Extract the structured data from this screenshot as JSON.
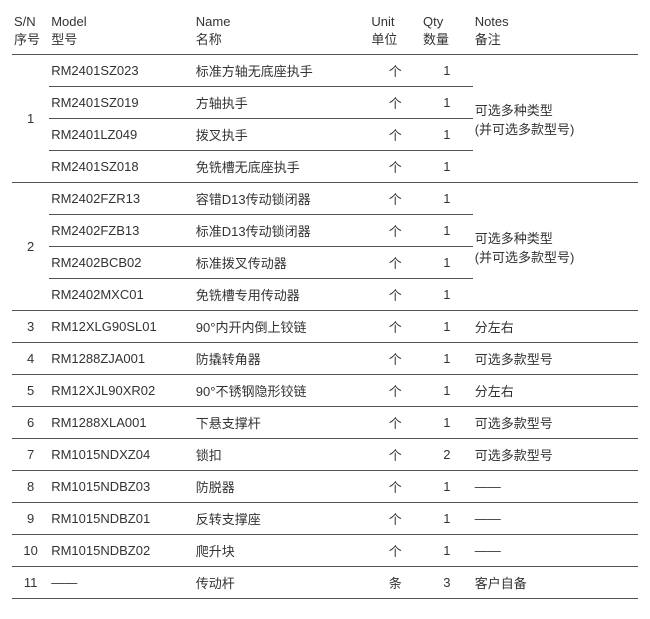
{
  "columns": [
    {
      "en": "S/N",
      "zh": "序号"
    },
    {
      "en": "Model",
      "zh": "型号"
    },
    {
      "en": "Name",
      "zh": "名称"
    },
    {
      "en": "Unit",
      "zh": "单位"
    },
    {
      "en": "Qty",
      "zh": "数量"
    },
    {
      "en": "Notes",
      "zh": "备注"
    }
  ],
  "groups": [
    {
      "sn": "1",
      "notes": [
        "可选多种类型",
        "(并可选多款型号)"
      ],
      "rows": [
        {
          "model": "RM2401SZ023",
          "name": "标准方轴无底座执手",
          "unit": "个",
          "qty": "1"
        },
        {
          "model": "RM2401SZ019",
          "name": "方轴执手",
          "unit": "个",
          "qty": "1"
        },
        {
          "model": "RM2401LZ049",
          "name": "拨叉执手",
          "unit": "个",
          "qty": "1"
        },
        {
          "model": "RM2401SZ018",
          "name": "免铣槽无底座执手",
          "unit": "个",
          "qty": "1"
        }
      ]
    },
    {
      "sn": "2",
      "notes": [
        "可选多种类型",
        "(并可选多款型号)"
      ],
      "rows": [
        {
          "model": "RM2402FZR13",
          "name": "容错D13传动锁闭器",
          "unit": "个",
          "qty": "1"
        },
        {
          "model": "RM2402FZB13",
          "name": "标准D13传动锁闭器",
          "unit": "个",
          "qty": "1"
        },
        {
          "model": "RM2402BCB02",
          "name": "标准拨叉传动器",
          "unit": "个",
          "qty": "1"
        },
        {
          "model": "RM2402MXC01",
          "name": "免铣槽专用传动器",
          "unit": "个",
          "qty": "1"
        }
      ]
    },
    {
      "sn": "3",
      "notes": [
        "分左右"
      ],
      "rows": [
        {
          "model": "RM12XLG90SL01",
          "name": "90°内开内倒上铰链",
          "unit": "个",
          "qty": "1"
        }
      ]
    },
    {
      "sn": "4",
      "notes": [
        "可选多款型号"
      ],
      "rows": [
        {
          "model": "RM1288ZJA001",
          "name": "防撬转角器",
          "unit": "个",
          "qty": "1"
        }
      ]
    },
    {
      "sn": "5",
      "notes": [
        "分左右"
      ],
      "rows": [
        {
          "model": "RM12XJL90XR02",
          "name": "90°不锈钢隐形铰链",
          "unit": "个",
          "qty": "1"
        }
      ]
    },
    {
      "sn": "6",
      "notes": [
        "可选多款型号"
      ],
      "rows": [
        {
          "model": "RM1288XLA001",
          "name": "下悬支撑杆",
          "unit": "个",
          "qty": "1"
        }
      ]
    },
    {
      "sn": "7",
      "notes": [
        "可选多款型号"
      ],
      "rows": [
        {
          "model": "RM1015NDXZ04",
          "name": "锁扣",
          "unit": "个",
          "qty": "2"
        }
      ]
    },
    {
      "sn": "8",
      "notes": [
        "——"
      ],
      "rows": [
        {
          "model": "RM1015NDBZ03",
          "name": "防脱器",
          "unit": "个",
          "qty": "1"
        }
      ]
    },
    {
      "sn": "9",
      "notes": [
        "——"
      ],
      "rows": [
        {
          "model": "RM1015NDBZ01",
          "name": "反转支撑座",
          "unit": "个",
          "qty": "1"
        }
      ]
    },
    {
      "sn": "10",
      "notes": [
        "——"
      ],
      "rows": [
        {
          "model": "RM1015NDBZ02",
          "name": "爬升块",
          "unit": "个",
          "qty": "1"
        }
      ]
    },
    {
      "sn": "11",
      "notes": [
        "客户自备"
      ],
      "rows": [
        {
          "model": "——",
          "name": "传动杆",
          "unit": "条",
          "qty": "3"
        }
      ]
    }
  ]
}
